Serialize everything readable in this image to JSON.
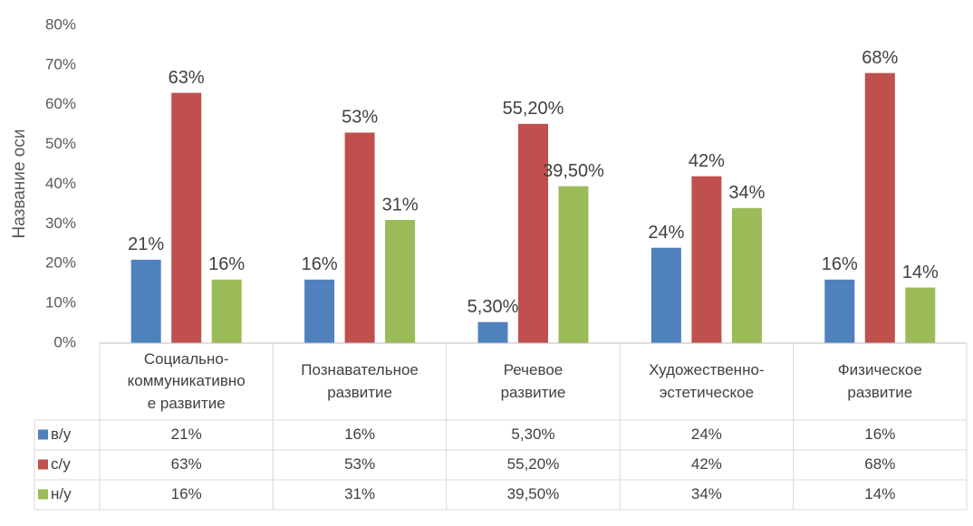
{
  "chart_data": {
    "type": "bar",
    "y_axis_label": "Название оси",
    "categories": [
      "Социально-\nкоммуникативно\nе развитие",
      "Познавательное\nразвитие",
      "Речевое\nразвитие",
      "Художественно-\nэстетическое",
      "Физическое\nразвитие"
    ],
    "series": [
      {
        "name": "в/у",
        "color": "#4f81bd",
        "values": [
          21,
          16,
          5.3,
          24,
          16
        ],
        "value_labels": [
          "21%",
          "16%",
          "5,30%",
          "24%",
          "16%"
        ]
      },
      {
        "name": "с/у",
        "color": "#c0504d",
        "values": [
          63,
          53,
          55.2,
          42,
          68
        ],
        "value_labels": [
          "63%",
          "53%",
          "55,20%",
          "42%",
          "68%"
        ]
      },
      {
        "name": "н/у",
        "color": "#9bbb59",
        "values": [
          16,
          31,
          39.5,
          34,
          14
        ],
        "value_labels": [
          "16%",
          "31%",
          "39,50%",
          "34%",
          "14%"
        ]
      }
    ],
    "ylim": [
      0,
      80
    ],
    "yticks": [
      {
        "value": 0,
        "label": "0%"
      },
      {
        "value": 10,
        "label": "10%"
      },
      {
        "value": 20,
        "label": "20%"
      },
      {
        "value": 30,
        "label": "30%"
      },
      {
        "value": 40,
        "label": "40%"
      },
      {
        "value": 50,
        "label": "50%"
      },
      {
        "value": 60,
        "label": "60%"
      },
      {
        "value": 70,
        "label": "70%"
      },
      {
        "value": 80,
        "label": "80%"
      }
    ],
    "grid": false,
    "data_table": true
  }
}
